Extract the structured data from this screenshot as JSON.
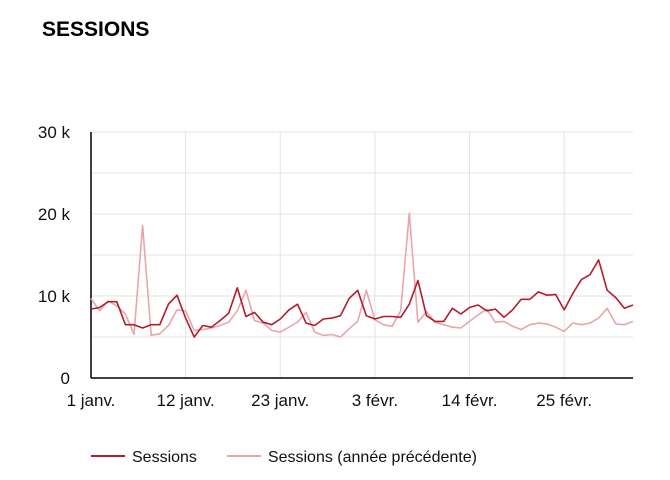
{
  "chart_data": {
    "type": "line",
    "title": "SESSIONS",
    "xlabel": "",
    "ylabel": "",
    "ylim": [
      0,
      30000
    ],
    "y_ticks": [
      {
        "value": 0,
        "label": "0"
      },
      {
        "value": 10000,
        "label": "10 k"
      },
      {
        "value": 20000,
        "label": "20 k"
      },
      {
        "value": 30000,
        "label": "30 k"
      }
    ],
    "x_ticks": [
      {
        "index": 0,
        "label": "1 janv."
      },
      {
        "index": 11,
        "label": "12 janv."
      },
      {
        "index": 22,
        "label": "23 janv."
      },
      {
        "index": 33,
        "label": "3 févr."
      },
      {
        "index": 44,
        "label": "14 févr."
      },
      {
        "index": 55,
        "label": "25 févr."
      }
    ],
    "grid": true,
    "legend_position": "bottom",
    "x": [
      "1 janv.",
      "2 janv.",
      "3 janv.",
      "4 janv.",
      "5 janv.",
      "6 janv.",
      "7 janv.",
      "8 janv.",
      "9 janv.",
      "10 janv.",
      "11 janv.",
      "12 janv.",
      "13 janv.",
      "14 janv.",
      "15 janv.",
      "16 janv.",
      "17 janv.",
      "18 janv.",
      "19 janv.",
      "20 janv.",
      "21 janv.",
      "22 janv.",
      "23 janv.",
      "24 janv.",
      "25 janv.",
      "26 janv.",
      "27 janv.",
      "28 janv.",
      "29 janv.",
      "30 janv.",
      "31 janv.",
      "1 févr.",
      "2 févr.",
      "3 févr.",
      "4 févr.",
      "5 févr.",
      "6 févr.",
      "7 févr.",
      "8 févr.",
      "9 févr.",
      "10 févr.",
      "11 févr.",
      "12 févr.",
      "13 févr.",
      "14 févr.",
      "15 févr.",
      "16 févr.",
      "17 févr.",
      "18 févr.",
      "19 févr.",
      "20 févr.",
      "21 févr.",
      "22 févr.",
      "23 févr.",
      "24 févr.",
      "25 févr.",
      "26 févr.",
      "27 févr.",
      "28 févr.",
      "29 févr.",
      "1 mars",
      "2 mars",
      "3 mars",
      "4 mars"
    ],
    "series": [
      {
        "name": "Sessions",
        "color": "#b41c2c",
        "values": [
          8400,
          8600,
          9300,
          9300,
          6500,
          6500,
          6100,
          6500,
          6500,
          9000,
          10100,
          7300,
          5000,
          6400,
          6200,
          7000,
          7900,
          11000,
          7500,
          8000,
          6800,
          6500,
          7200,
          8300,
          9000,
          6700,
          6400,
          7200,
          7300,
          7600,
          9700,
          10700,
          7600,
          7200,
          7500,
          7500,
          7400,
          9000,
          11900,
          7600,
          6900,
          6900,
          8500,
          7800,
          8600,
          8900,
          8200,
          8400,
          7400,
          8300,
          9600,
          9600,
          10500,
          10100,
          10200,
          8300,
          10300,
          12000,
          12600,
          14400,
          10700,
          9800,
          8500,
          8900
        ]
      },
      {
        "name": "Sessions (année précédente)",
        "color": "#e8a6ab",
        "values": [
          9700,
          8200,
          9400,
          8800,
          7800,
          5300,
          18600,
          5200,
          5400,
          6400,
          8300,
          8200,
          5800,
          5900,
          6100,
          6400,
          6800,
          8200,
          10700,
          7000,
          6700,
          5800,
          5600,
          6200,
          6800,
          8000,
          5600,
          5200,
          5300,
          5000,
          6000,
          6900,
          10700,
          7100,
          6500,
          6300,
          8200,
          20100,
          6800,
          8100,
          6800,
          6500,
          6200,
          6100,
          6900,
          7700,
          8400,
          6800,
          6900,
          6300,
          5900,
          6500,
          6700,
          6600,
          6200,
          5700,
          6700,
          6500,
          6700,
          7300,
          8500,
          6600,
          6500,
          6900
        ]
      }
    ]
  }
}
